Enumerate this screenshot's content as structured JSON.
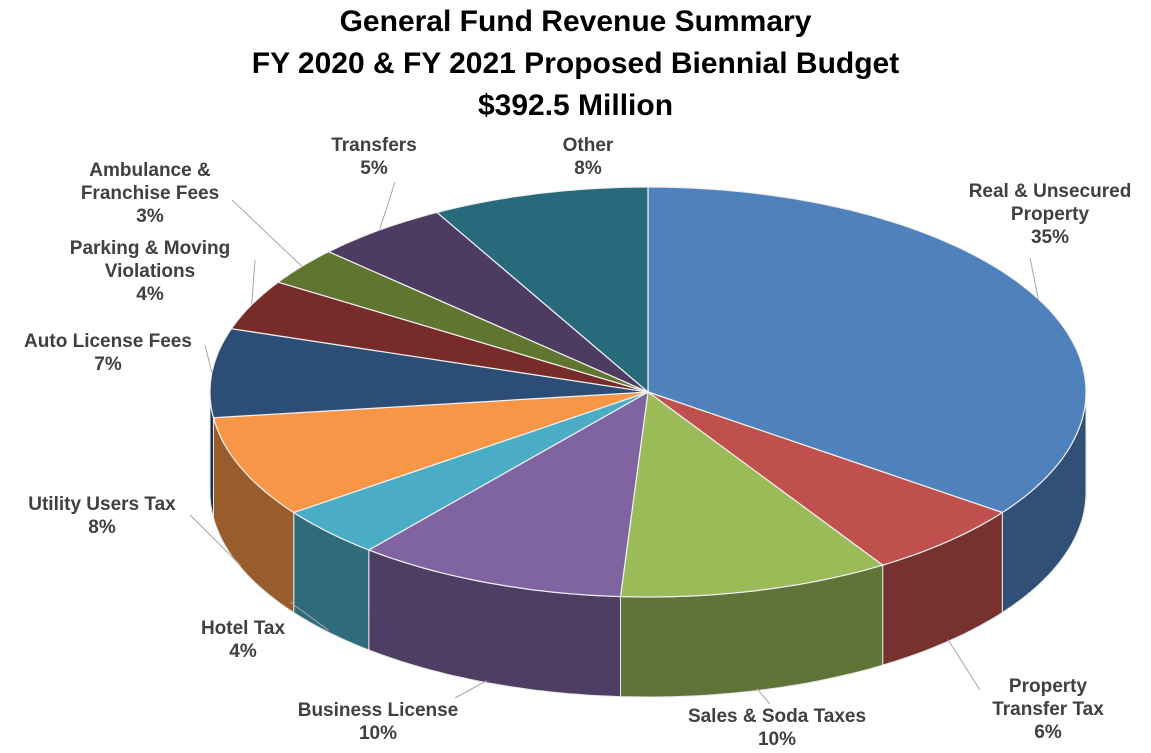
{
  "chart_data": {
    "type": "pie3d",
    "title": [
      "General Fund Revenue Summary",
      "FY 2020 & FY 2021 Proposed Biennial Budget",
      "$392.5 Million"
    ],
    "categories": [
      "Real & Unsecured Property",
      "Property Transfer Tax",
      "Sales & Soda Taxes",
      "Business License",
      "Hotel Tax",
      "Utility Users Tax",
      "Auto License Fees",
      "Parking & Moving Violations",
      "Ambulance & Franchise Fees",
      "Transfers",
      "Other"
    ],
    "values": [
      35,
      6,
      10,
      10,
      4,
      8,
      7,
      4,
      3,
      5,
      8
    ],
    "value_labels": [
      "35%",
      "6%",
      "10%",
      "10%",
      "4%",
      "8%",
      "7%",
      "4%",
      "3%",
      "5%",
      "8%"
    ],
    "colors": [
      "#4f81bd",
      "#c0504d",
      "#9bbb59",
      "#8064a2",
      "#4bacc6",
      "#f79646",
      "#2c4d75",
      "#772c2a",
      "#5f7530",
      "#4d3b62",
      "#276a7c"
    ]
  }
}
